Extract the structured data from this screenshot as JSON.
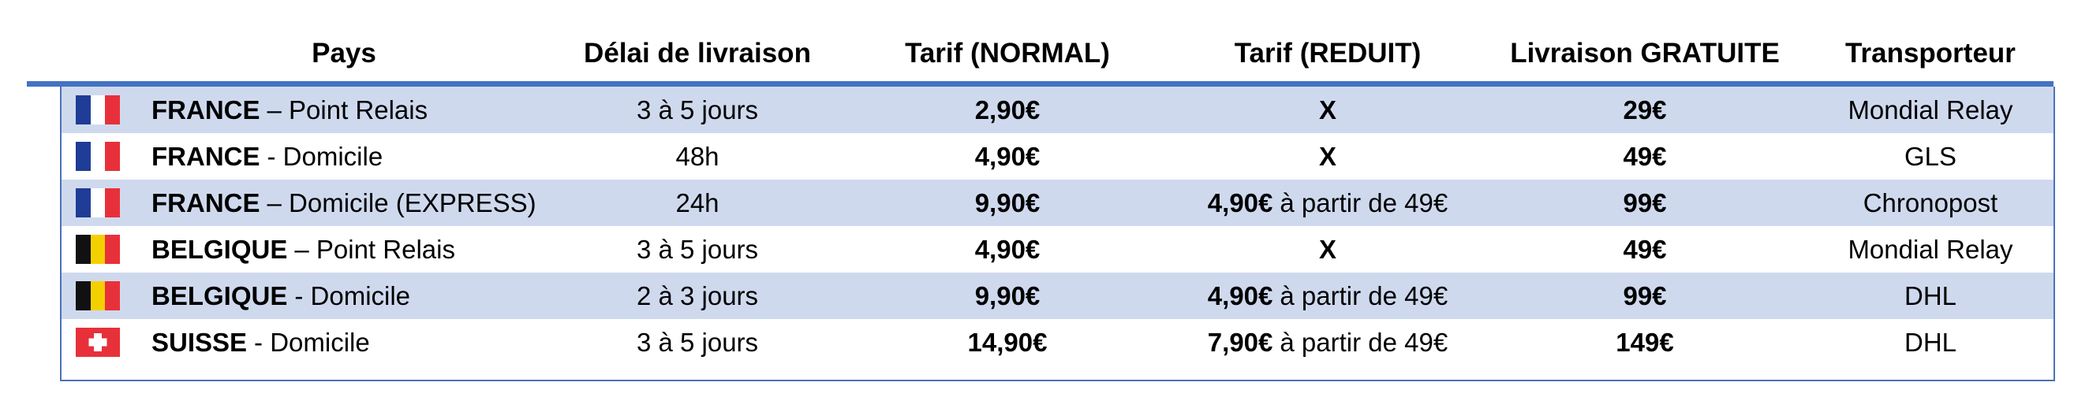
{
  "table": {
    "header": [
      "Pays",
      "Délai de livraison",
      "Tarif (NORMAL)",
      "Tarif (REDUIT)",
      "Livraison GRATUITE",
      "Transporteur"
    ],
    "rows": [
      {
        "country": "FRANCE",
        "mode": "– Point Relais",
        "delai": "3 à 5 jours",
        "normal": "2,90€",
        "reduit": "X",
        "gratuite": "29€",
        "transporteur": "Mondial Relay"
      },
      {
        "country": "FRANCE",
        "mode": "- Domicile",
        "delai": "48h",
        "normal": "4,90€",
        "reduit": "X",
        "gratuite": "49€",
        "transporteur": "GLS"
      },
      {
        "country": "FRANCE",
        "mode": "– Domicile (EXPRESS)",
        "delai": "24h",
        "normal": "9,90€",
        "reduit": "4,90€",
        "reduit_note": "à partir de 49€",
        "gratuite": "99€",
        "transporteur": "Chronopost"
      },
      {
        "country": "BELGIQUE",
        "mode": "– Point Relais",
        "delai": "3 à 5 jours",
        "normal": "4,90€",
        "reduit": "X",
        "gratuite": "49€",
        "transporteur": "Mondial Relay"
      },
      {
        "country": "BELGIQUE",
        "mode": "- Domicile",
        "delai": "2 à 3 jours",
        "normal": "9,90€",
        "reduit": "4,90€",
        "reduit_note": "à partir de 49€",
        "gratuite": "99€",
        "transporteur": "DHL"
      },
      {
        "country": "SUISSE",
        "mode": "- Domicile",
        "delai": "3 à 5 jours",
        "normal": "14,90€",
        "reduit": "7,90€",
        "reduit_note": "à partir de 49€",
        "gratuite": "149€",
        "transporteur": "DHL"
      }
    ]
  }
}
